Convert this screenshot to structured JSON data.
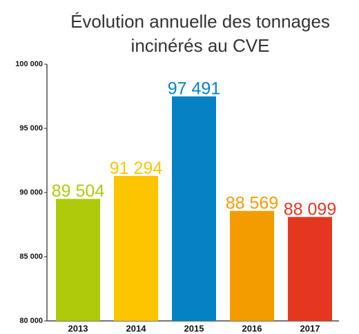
{
  "chart_data": {
    "type": "bar",
    "title": [
      "Évolution annuelle des tonnages",
      "incinérés au CVE"
    ],
    "categories": [
      "2013",
      "2014",
      "2015",
      "2016",
      "2017"
    ],
    "values": [
      89504,
      91294,
      97491,
      88569,
      88099
    ],
    "value_labels": [
      "89 504",
      "91 294",
      "97 491",
      "88 569",
      "88 099"
    ],
    "colors": [
      "#afca0b",
      "#fcc500",
      "#0482c4",
      "#f39c00",
      "#e5371f"
    ],
    "ylim": [
      80000,
      100000
    ],
    "yticks": [
      {
        "value": 80000,
        "label": "80 000"
      },
      {
        "value": 85000,
        "label": "85 000"
      },
      {
        "value": 90000,
        "label": "90 000"
      },
      {
        "value": 95000,
        "label": "95 000"
      },
      {
        "value": 100000,
        "label": "100 000"
      }
    ],
    "grid": false
  }
}
